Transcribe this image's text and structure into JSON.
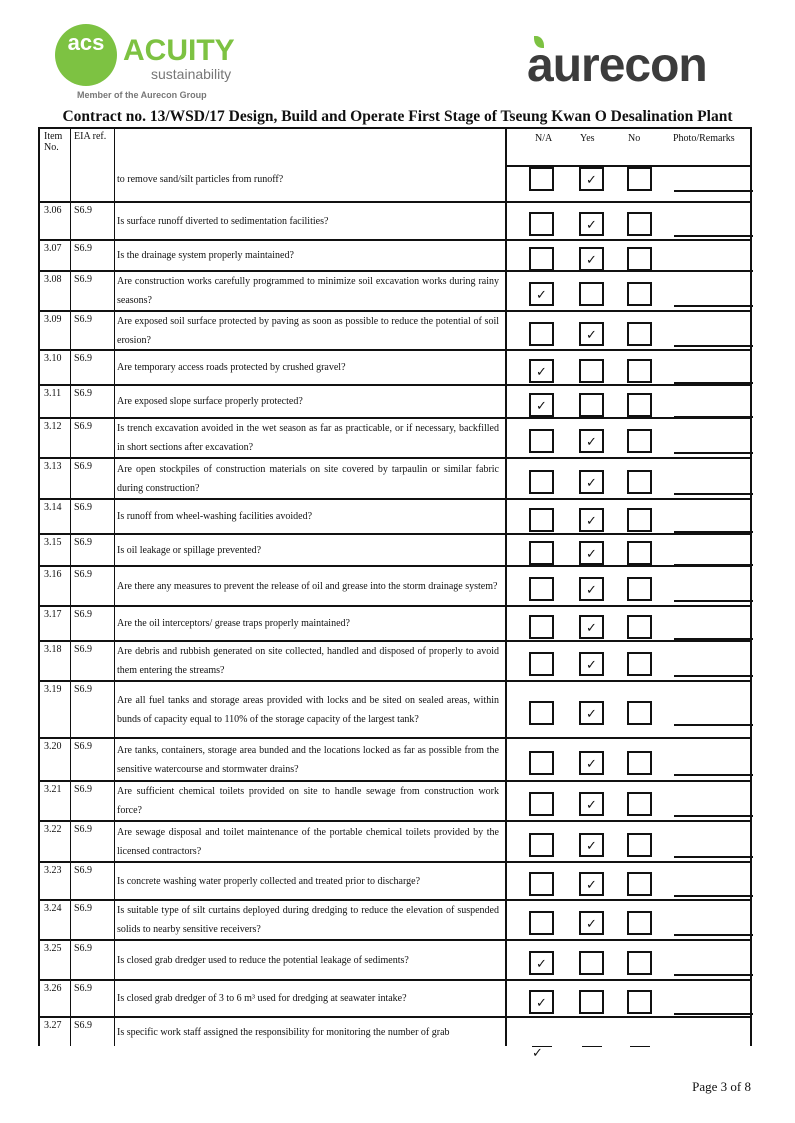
{
  "logos": {
    "acuity": {
      "mark": "acs",
      "name": "ACUITY",
      "sub": "sustainability",
      "member": "Member of the Aurecon Group"
    },
    "aurecon": "aurecon"
  },
  "title": "Contract no.  13/WSD/17 Design, Build and Operate First Stage of Tseung Kwan O Desalination Plant",
  "headers": {
    "item": "Item No.",
    "eia": "EIA ref.",
    "na": "N/A",
    "yes": "Yes",
    "no": "No",
    "remarks": "Photo/Remarks"
  },
  "rows": [
    {
      "item": "",
      "eia": "",
      "q": "to remove sand/silt particles from runoff?",
      "answer": "Yes"
    },
    {
      "item": "3.06",
      "eia": "S6.9",
      "q": "Is surface runoff diverted to sedimentation facilities?",
      "answer": "Yes"
    },
    {
      "item": "3.07",
      "eia": "S6.9",
      "q": "Is the drainage system properly maintained?",
      "answer": "Yes"
    },
    {
      "item": "3.08",
      "eia": "S6.9",
      "q": "Are construction works carefully programmed to minimize soil excavation works during rainy seasons?",
      "answer": "N/A"
    },
    {
      "item": "3.09",
      "eia": "S6.9",
      "q": "Are exposed soil surface protected by paving as soon as possible to reduce the potential of soil erosion?",
      "answer": "Yes"
    },
    {
      "item": "3.10",
      "eia": "S6.9",
      "q": "Are temporary access roads protected by crushed gravel?",
      "answer": "N/A"
    },
    {
      "item": "3.11",
      "eia": "S6.9",
      "q": "Are exposed slope surface properly protected?",
      "answer": "N/A"
    },
    {
      "item": "3.12",
      "eia": "S6.9",
      "q": "Is trench excavation avoided in the wet season as far as practicable, or if necessary, backfilled in short sections after excavation?",
      "answer": "Yes"
    },
    {
      "item": "3.13",
      "eia": "S6.9",
      "q": "Are open stockpiles of construction materials on site covered by tarpaulin or similar fabric during construction?",
      "answer": "Yes"
    },
    {
      "item": "3.14",
      "eia": "S6.9",
      "q": "Is runoff from wheel-washing facilities avoided?",
      "answer": "Yes"
    },
    {
      "item": "3.15",
      "eia": "S6.9",
      "q": "Is oil leakage or spillage prevented?",
      "answer": "Yes"
    },
    {
      "item": "3.16",
      "eia": "S6.9",
      "q": "Are there any measures to prevent the release of oil and grease into the storm drainage system?",
      "answer": "Yes"
    },
    {
      "item": "3.17",
      "eia": "S6.9",
      "q": "Are the oil interceptors/ grease traps properly maintained?",
      "answer": "Yes"
    },
    {
      "item": "3.18",
      "eia": "S6.9",
      "q": "Are debris and rubbish generated on site collected, handled and disposed of properly to avoid them entering the streams?",
      "answer": "Yes"
    },
    {
      "item": "3.19",
      "eia": "S6.9",
      "q": "Are all fuel tanks and storage areas provided with locks and be sited on sealed areas, within bunds of capacity equal to 110% of the storage capacity of the largest tank?",
      "answer": "Yes"
    },
    {
      "item": "3.20",
      "eia": "S6.9",
      "q": "Are tanks, containers, storage area bunded and the locations locked as far as possible from the sensitive watercourse and stormwater drains?",
      "answer": "Yes"
    },
    {
      "item": "3.21",
      "eia": "S6.9",
      "q": "Are sufficient chemical toilets provided on site to handle sewage from construction work force?",
      "answer": "Yes"
    },
    {
      "item": "3.22",
      "eia": "S6.9",
      "q": "Are sewage disposal and toilet maintenance of the portable chemical toilets provided by the licensed contractors?",
      "answer": "Yes"
    },
    {
      "item": "3.23",
      "eia": "S6.9",
      "q": "Is concrete washing water properly collected and treated prior to discharge?",
      "answer": "Yes"
    },
    {
      "item": "3.24",
      "eia": "S6.9",
      "q": "Is suitable type of silt curtains deployed during dredging to reduce the elevation of suspended solids to nearby sensitive receivers?",
      "answer": "Yes"
    },
    {
      "item": "3.25",
      "eia": "S6.9",
      "q": "Is closed grab dredger used to reduce the potential leakage of sediments?",
      "answer": "N/A"
    },
    {
      "item": "3.26",
      "eia": "S6.9",
      "q": "Is closed grab dredger of 3 to 6 m³ used for dredging at seawater intake?",
      "answer": "N/A"
    },
    {
      "item": "3.27",
      "eia": "S6.9",
      "q": "Is specific work staff assigned the responsibility for monitoring the number of grab",
      "answer": "N/A"
    }
  ],
  "check_mark": "✓",
  "footer": "Page 3 of 8"
}
